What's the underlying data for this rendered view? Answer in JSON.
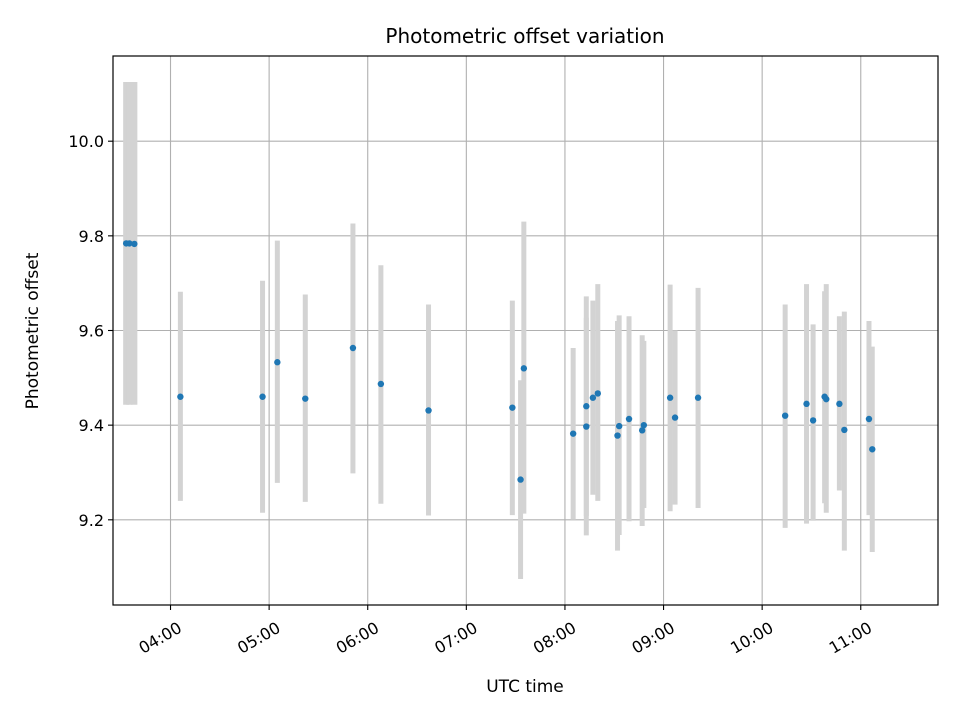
{
  "chart_data": {
    "type": "scatter",
    "title": "Photometric offset variation",
    "xlabel": "UTC time",
    "ylabel": "Photometric offset",
    "x_ticks": [
      "04:00",
      "05:00",
      "06:00",
      "07:00",
      "08:00",
      "09:00",
      "10:00",
      "11:00"
    ],
    "y_ticks": [
      "9.2",
      "9.4",
      "9.6",
      "9.8",
      "10.0"
    ],
    "xlim": [
      "03:25",
      "11:47"
    ],
    "ylim": [
      9.02,
      10.18
    ],
    "grid": true,
    "colors": {
      "point": "#1f77b4",
      "errorbar": "#d3d3d3",
      "grid": "#b0b0b0"
    },
    "points": [
      {
        "x": "03:33",
        "y": 9.784,
        "err_lo": 9.443,
        "err_hi": 10.125
      },
      {
        "x": "03:35",
        "y": 9.784,
        "err_lo": 9.443,
        "err_hi": 10.125
      },
      {
        "x": "03:38",
        "y": 9.783,
        "err_lo": 9.443,
        "err_hi": 10.125
      },
      {
        "x": "04:06",
        "y": 9.46,
        "err_lo": 9.24,
        "err_hi": 9.682
      },
      {
        "x": "04:56",
        "y": 9.46,
        "err_lo": 9.215,
        "err_hi": 9.705
      },
      {
        "x": "05:05",
        "y": 9.533,
        "err_lo": 9.278,
        "err_hi": 9.79
      },
      {
        "x": "05:22",
        "y": 9.456,
        "err_lo": 9.238,
        "err_hi": 9.676
      },
      {
        "x": "05:51",
        "y": 9.563,
        "err_lo": 9.298,
        "err_hi": 9.826
      },
      {
        "x": "06:08",
        "y": 9.487,
        "err_lo": 9.234,
        "err_hi": 9.738
      },
      {
        "x": "06:37",
        "y": 9.431,
        "err_lo": 9.209,
        "err_hi": 9.655
      },
      {
        "x": "07:28",
        "y": 9.437,
        "err_lo": 9.21,
        "err_hi": 9.663
      },
      {
        "x": "07:33",
        "y": 9.285,
        "err_lo": 9.075,
        "err_hi": 9.495
      },
      {
        "x": "07:35",
        "y": 9.52,
        "err_lo": 9.213,
        "err_hi": 9.83
      },
      {
        "x": "08:05",
        "y": 9.382,
        "err_lo": 9.2,
        "err_hi": 9.563
      },
      {
        "x": "08:13",
        "y": 9.397,
        "err_lo": 9.167,
        "err_hi": 9.627
      },
      {
        "x": "08:13",
        "y": 9.44,
        "err_lo": 9.208,
        "err_hi": 9.672
      },
      {
        "x": "08:17",
        "y": 9.458,
        "err_lo": 9.253,
        "err_hi": 9.663
      },
      {
        "x": "08:20",
        "y": 9.467,
        "err_lo": 9.24,
        "err_hi": 9.698
      },
      {
        "x": "08:32",
        "y": 9.378,
        "err_lo": 9.135,
        "err_hi": 9.62
      },
      {
        "x": "08:33",
        "y": 9.398,
        "err_lo": 9.168,
        "err_hi": 9.632
      },
      {
        "x": "08:39",
        "y": 9.413,
        "err_lo": 9.197,
        "err_hi": 9.63
      },
      {
        "x": "08:47",
        "y": 9.389,
        "err_lo": 9.187,
        "err_hi": 9.59
      },
      {
        "x": "08:48",
        "y": 9.4,
        "err_lo": 9.225,
        "err_hi": 9.578
      },
      {
        "x": "09:04",
        "y": 9.458,
        "err_lo": 9.218,
        "err_hi": 9.697
      },
      {
        "x": "09:07",
        "y": 9.416,
        "err_lo": 9.232,
        "err_hi": 9.6
      },
      {
        "x": "09:21",
        "y": 9.458,
        "err_lo": 9.225,
        "err_hi": 9.69
      },
      {
        "x": "10:14",
        "y": 9.42,
        "err_lo": 9.183,
        "err_hi": 9.655
      },
      {
        "x": "10:27",
        "y": 9.445,
        "err_lo": 9.192,
        "err_hi": 9.698
      },
      {
        "x": "10:31",
        "y": 9.41,
        "err_lo": 9.198,
        "err_hi": 9.613
      },
      {
        "x": "10:38",
        "y": 9.46,
        "err_lo": 9.235,
        "err_hi": 9.683
      },
      {
        "x": "10:39",
        "y": 9.455,
        "err_lo": 9.215,
        "err_hi": 9.698
      },
      {
        "x": "10:47",
        "y": 9.445,
        "err_lo": 9.262,
        "err_hi": 9.63
      },
      {
        "x": "10:50",
        "y": 9.39,
        "err_lo": 9.135,
        "err_hi": 9.64
      },
      {
        "x": "11:05",
        "y": 9.413,
        "err_lo": 9.21,
        "err_hi": 9.62
      },
      {
        "x": "11:07",
        "y": 9.349,
        "err_lo": 9.132,
        "err_hi": 9.566
      }
    ]
  }
}
